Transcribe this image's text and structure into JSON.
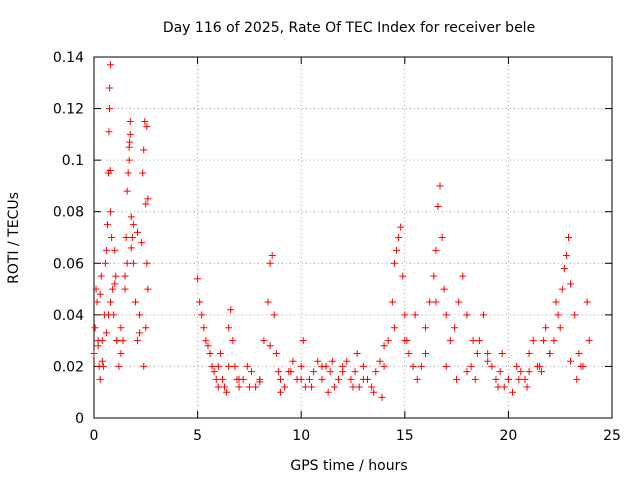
{
  "chart_data": {
    "type": "scatter",
    "title": "Day 116 of 2025, Rate Of TEC Index for receiver bele",
    "xlabel": "GPS time / hours",
    "ylabel": "ROTI / TECUs",
    "xlim": [
      0,
      25
    ],
    "ylim": [
      0,
      0.14
    ],
    "xticks": [
      0,
      5,
      10,
      15,
      20,
      25
    ],
    "xtick_labels": [
      "0",
      "5",
      "10",
      "15",
      "20",
      "25"
    ],
    "yticks": [
      0,
      0.02,
      0.04,
      0.06,
      0.08,
      0.1,
      0.12,
      0.14
    ],
    "ytick_labels": [
      "0",
      "0.02",
      "0.04",
      "0.06",
      "0.08",
      "0.1",
      "0.12",
      "0.14"
    ],
    "grid": true,
    "marker": "plus",
    "color": "#ff0000",
    "series": [
      {
        "x": [
          0.0,
          0.05,
          0.1,
          0.15,
          0.2,
          0.25,
          0.3,
          0.35,
          0.4,
          0.45,
          0.5,
          0.55,
          0.6,
          0.65,
          0.7,
          0.72,
          0.75,
          0.8,
          0.85,
          0.9,
          0.95,
          1.0,
          1.05,
          1.1,
          1.2,
          1.3,
          1.4,
          1.5,
          1.55,
          1.6,
          1.65,
          1.7,
          1.75,
          1.8,
          1.85,
          1.9,
          2.0,
          2.1,
          2.2,
          2.3,
          2.35,
          2.4,
          2.45,
          2.5,
          2.55,
          2.6,
          0.2,
          0.4,
          0.6,
          0.8,
          1.0,
          1.3,
          1.6,
          1.9,
          2.2,
          2.5,
          0.3,
          0.7,
          1.1,
          1.5,
          1.8,
          2.1,
          2.4,
          0.75,
          0.78,
          0.8,
          1.7,
          1.72,
          1.75,
          2.55,
          2.6,
          5.0,
          5.1,
          5.2,
          5.3,
          5.4,
          5.5,
          5.6,
          5.7,
          5.8,
          5.9,
          6.0,
          6.1,
          6.2,
          6.3,
          6.4,
          6.5,
          6.6,
          6.7,
          6.8,
          6.9,
          7.0,
          7.2,
          7.4,
          7.6,
          7.8,
          8.0,
          8.2,
          8.4,
          8.5,
          8.6,
          8.7,
          8.8,
          8.9,
          9.0,
          9.2,
          9.4,
          9.6,
          9.8,
          10.0,
          10.2,
          10.4,
          10.6,
          10.8,
          11.0,
          11.2,
          11.4,
          11.6,
          11.8,
          12.0,
          12.2,
          12.4,
          12.6,
          12.8,
          13.0,
          13.2,
          13.4,
          13.6,
          13.8,
          14.0,
          14.2,
          14.4,
          14.5,
          14.6,
          14.7,
          14.8,
          14.9,
          15.0,
          15.1,
          15.2,
          15.4,
          15.6,
          15.8,
          16.0,
          16.2,
          16.4,
          16.5,
          16.6,
          16.7,
          16.8,
          16.9,
          17.0,
          17.2,
          17.4,
          17.6,
          17.8,
          18.0,
          18.2,
          18.4,
          18.6,
          18.8,
          19.0,
          19.2,
          19.4,
          19.6,
          19.8,
          20.0,
          20.2,
          20.4,
          20.6,
          20.8,
          21.0,
          21.2,
          21.4,
          21.6,
          21.8,
          22.0,
          22.2,
          22.4,
          22.6,
          22.7,
          22.8,
          22.9,
          23.0,
          23.2,
          23.4,
          23.6,
          23.8,
          23.9,
          6.0,
          7.0,
          8.0,
          9.0,
          10.0,
          11.0,
          12.0,
          13.0,
          14.0,
          15.0,
          16.0,
          17.0,
          18.0,
          19.0,
          20.0,
          21.0,
          22.0,
          23.0,
          6.5,
          7.5,
          8.5,
          9.5,
          10.5,
          11.5,
          12.5,
          13.5,
          14.5,
          15.5,
          16.5,
          17.5,
          18.5,
          19.5,
          20.5,
          21.5,
          22.5,
          23.5,
          10.1,
          11.3,
          12.7,
          13.9,
          18.3,
          19.7,
          20.9,
          21.7,
          22.3,
          23.3
        ],
        "y": [
          0.025,
          0.035,
          0.05,
          0.045,
          0.03,
          0.02,
          0.015,
          0.055,
          0.03,
          0.02,
          0.04,
          0.06,
          0.065,
          0.075,
          0.095,
          0.111,
          0.128,
          0.137,
          0.07,
          0.05,
          0.04,
          0.065,
          0.055,
          0.03,
          0.02,
          0.035,
          0.03,
          0.05,
          0.07,
          0.088,
          0.095,
          0.105,
          0.115,
          0.078,
          0.07,
          0.06,
          0.045,
          0.03,
          0.04,
          0.068,
          0.095,
          0.104,
          0.115,
          0.083,
          0.06,
          0.05,
          0.028,
          0.022,
          0.033,
          0.045,
          0.052,
          0.025,
          0.06,
          0.075,
          0.033,
          0.035,
          0.048,
          0.04,
          0.03,
          0.055,
          0.066,
          0.072,
          0.02,
          0.12,
          0.096,
          0.08,
          0.1,
          0.107,
          0.11,
          0.113,
          0.085,
          0.054,
          0.045,
          0.04,
          0.035,
          0.03,
          0.028,
          0.025,
          0.02,
          0.018,
          0.015,
          0.02,
          0.025,
          0.015,
          0.012,
          0.01,
          0.035,
          0.042,
          0.03,
          0.02,
          0.015,
          0.012,
          0.015,
          0.02,
          0.018,
          0.012,
          0.015,
          0.03,
          0.045,
          0.06,
          0.063,
          0.04,
          0.025,
          0.018,
          0.015,
          0.012,
          0.018,
          0.022,
          0.015,
          0.02,
          0.012,
          0.015,
          0.018,
          0.022,
          0.015,
          0.02,
          0.018,
          0.012,
          0.015,
          0.02,
          0.022,
          0.015,
          0.018,
          0.012,
          0.02,
          0.015,
          0.012,
          0.018,
          0.022,
          0.02,
          0.03,
          0.045,
          0.06,
          0.065,
          0.07,
          0.074,
          0.055,
          0.04,
          0.03,
          0.025,
          0.02,
          0.015,
          0.02,
          0.035,
          0.045,
          0.055,
          0.065,
          0.082,
          0.09,
          0.07,
          0.05,
          0.04,
          0.03,
          0.035,
          0.045,
          0.055,
          0.04,
          0.02,
          0.015,
          0.03,
          0.04,
          0.025,
          0.02,
          0.015,
          0.018,
          0.012,
          0.015,
          0.01,
          0.02,
          0.018,
          0.015,
          0.025,
          0.03,
          0.02,
          0.018,
          0.035,
          0.025,
          0.03,
          0.04,
          0.05,
          0.058,
          0.063,
          0.07,
          0.052,
          0.04,
          0.025,
          0.02,
          0.045,
          0.03,
          0.012,
          0.015,
          0.014,
          0.01,
          0.015,
          0.02,
          0.018,
          0.015,
          0.028,
          0.03,
          0.025,
          0.02,
          0.018,
          0.022,
          0.015,
          0.018,
          0.025,
          0.022,
          0.02,
          0.012,
          0.028,
          0.018,
          0.012,
          0.022,
          0.012,
          0.01,
          0.035,
          0.04,
          0.045,
          0.015,
          0.025,
          0.012,
          0.015,
          0.02,
          0.035,
          0.02,
          0.03,
          0.01,
          0.025,
          0.008,
          0.03,
          0.025,
          0.012,
          0.03,
          0.045,
          0.015
        ]
      }
    ]
  }
}
